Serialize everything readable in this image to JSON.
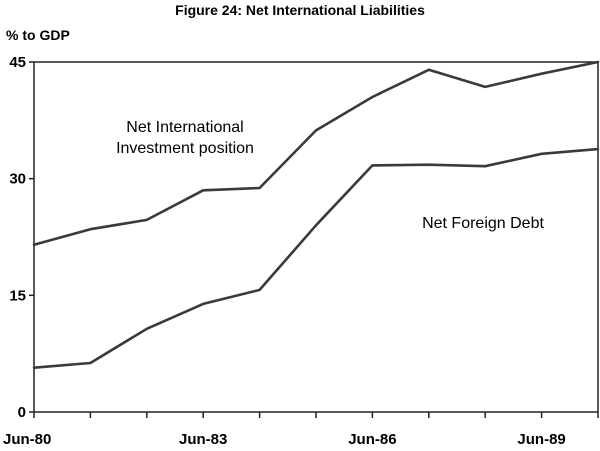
{
  "chart_data": {
    "type": "line",
    "title": "Figure 24: Net International Liabilities",
    "ylabel": "% to GDP",
    "xlabel": "",
    "ylim": [
      0,
      45
    ],
    "yticks": [
      "0",
      "15",
      "30",
      "45"
    ],
    "xticks": [
      "Jun-80",
      "Jun-83",
      "Jun-86",
      "Jun-89"
    ],
    "grid": false,
    "x": [
      "Jun-80",
      "Jun-81",
      "Jun-82",
      "Jun-83",
      "Jun-84",
      "Jun-85",
      "Jun-86",
      "Jun-87",
      "Jun-88",
      "Jun-89",
      "Jun-90"
    ],
    "series": [
      {
        "name": "Net International Investment position",
        "values": [
          21.5,
          23.5,
          24.7,
          28.5,
          28.8,
          36.2,
          40.5,
          44.0,
          41.8,
          43.5,
          45.0
        ]
      },
      {
        "name": "Net Foreign Debt",
        "values": [
          5.7,
          6.3,
          10.7,
          13.9,
          15.7,
          24.0,
          31.7,
          31.8,
          31.6,
          33.2,
          33.8
        ]
      }
    ],
    "annotations": [
      "Net International",
      "Investment position",
      "Net Foreign Debt"
    ]
  }
}
